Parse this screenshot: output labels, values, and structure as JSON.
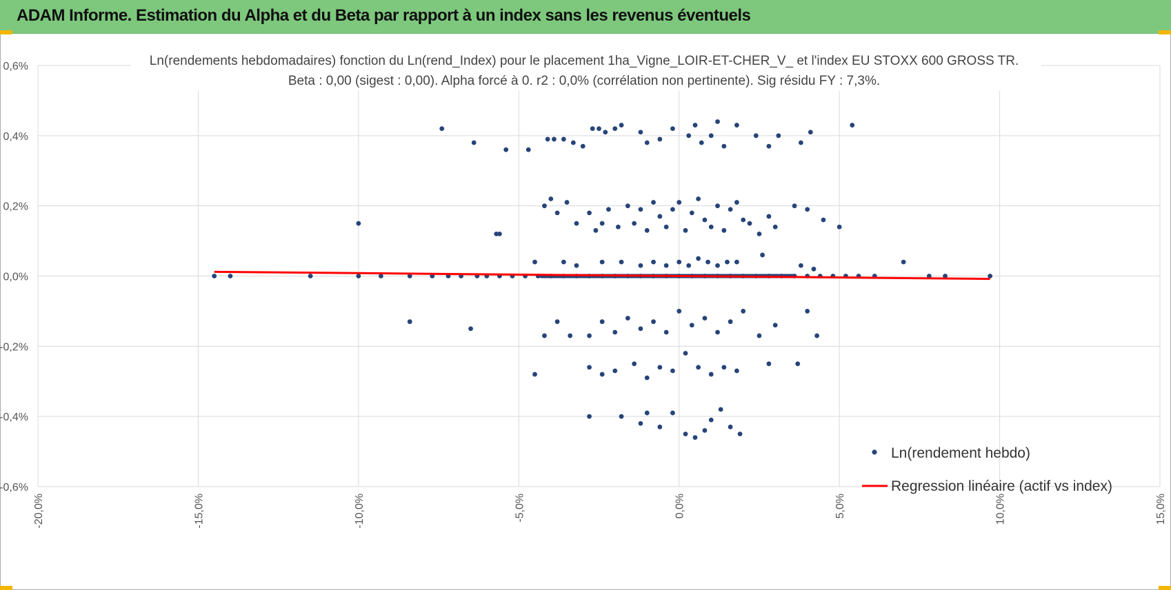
{
  "header": {
    "title": "ADAM Informe. Estimation du Alpha et du Beta par rapport à un index sans les revenus éventuels"
  },
  "colors": {
    "header_bg": "#7dc87d",
    "corner_accent": "#f2b705",
    "points": "#264478",
    "regression": "#ff0000",
    "grid": "#d9d9d9"
  },
  "chart_data": {
    "type": "scatter",
    "title": "Ln(rendements hebdomadaires) fonction du Ln(rend_Index) pour le placement 1ha_Vigne_LOIR-ET-CHER_V_ et l'index EU STOXX 600 GROSS TR.",
    "subtitle": "Beta : 0,00 (sigest : 0,00). Alpha forcé à 0. r2 : 0,0% (corrélation non pertinente). Sig résidu FY : 7,3%.",
    "xlabel": "",
    "ylabel": "",
    "xlim": [
      -20,
      15
    ],
    "ylim": [
      -0.6,
      0.6
    ],
    "x_ticks": [
      "-20,0%",
      "-15,0%",
      "-10,0%",
      "-5,0%",
      "0,0%",
      "5,0%",
      "10,0%",
      "15,0%"
    ],
    "y_ticks": [
      "0,6%",
      "0,4%",
      "0,2%",
      "0,0%",
      "-0,2%",
      "-0,4%",
      "-0,6%"
    ],
    "grid": true,
    "legend_position": "bottom-right",
    "series": [
      {
        "name": "Ln(rendement hebdo)",
        "kind": "points",
        "color": "#264478",
        "x": [
          -7.4,
          -6.4,
          -5.4,
          -4.7,
          -4.1,
          -3.9,
          -3.6,
          -3.3,
          -3.0,
          -2.7,
          -2.5,
          -2.3,
          -2.0,
          -1.8,
          -1.2,
          -1.0,
          -0.6,
          -0.2,
          0.3,
          0.5,
          0.7,
          1.0,
          1.2,
          1.4,
          1.8,
          2.4,
          2.8,
          3.1,
          3.8,
          4.1,
          5.4,
          -10.0,
          -5.7,
          -5.6,
          -4.2,
          -4.0,
          -3.8,
          -3.5,
          -3.2,
          -2.8,
          -2.6,
          -2.4,
          -2.2,
          -1.9,
          -1.6,
          -1.4,
          -1.2,
          -1.0,
          -0.8,
          -0.6,
          -0.4,
          -0.2,
          0.0,
          0.2,
          0.4,
          0.6,
          0.8,
          1.0,
          1.2,
          1.4,
          1.6,
          1.8,
          2.0,
          2.2,
          2.5,
          2.8,
          3.0,
          3.6,
          4.0,
          4.5,
          5.0,
          -4.5,
          -3.6,
          -3.2,
          -2.4,
          -1.8,
          -1.2,
          -0.8,
          -0.4,
          0.0,
          0.3,
          0.6,
          0.9,
          1.2,
          1.5,
          1.8,
          2.6,
          3.8,
          4.2,
          -14.5,
          -14.0,
          -11.5,
          -10.0,
          -9.3,
          -8.4,
          -7.7,
          -7.2,
          -6.8,
          -6.3,
          -6.0,
          -5.6,
          -5.2,
          -4.8,
          -4.4,
          -4.0,
          -3.6,
          -3.2,
          -2.8,
          -2.4,
          -2.0,
          -1.6,
          -1.2,
          -0.8,
          -0.4,
          0.0,
          0.4,
          0.8,
          1.2,
          1.6,
          2.0,
          2.4,
          2.8,
          3.2,
          3.6,
          4.0,
          4.4,
          4.8,
          5.2,
          5.6,
          6.1,
          7.0,
          7.8,
          8.3,
          9.7,
          -8.4,
          -6.5,
          -4.2,
          -3.8,
          -3.4,
          -2.8,
          -2.4,
          -2.0,
          -1.6,
          -1.2,
          -0.8,
          -0.4,
          0.0,
          0.4,
          0.8,
          1.2,
          1.6,
          2.0,
          2.5,
          3.0,
          4.0,
          4.3,
          -4.5,
          -2.8,
          -2.4,
          -2.0,
          -1.4,
          -1.0,
          -0.6,
          -0.2,
          0.2,
          0.6,
          1.0,
          1.4,
          1.8,
          2.8,
          3.7,
          -2.8,
          -1.8,
          -1.2,
          -1.0,
          -0.6,
          -0.2,
          0.2,
          0.5,
          0.8,
          1.0,
          1.3,
          1.6,
          1.9
        ],
        "y": [
          0.42,
          0.38,
          0.36,
          0.36,
          0.39,
          0.39,
          0.39,
          0.38,
          0.37,
          0.42,
          0.42,
          0.41,
          0.42,
          0.43,
          0.41,
          0.38,
          0.39,
          0.42,
          0.4,
          0.43,
          0.38,
          0.4,
          0.44,
          0.37,
          0.43,
          0.4,
          0.37,
          0.4,
          0.38,
          0.41,
          0.43,
          0.15,
          0.12,
          0.12,
          0.2,
          0.22,
          0.18,
          0.21,
          0.15,
          0.18,
          0.13,
          0.15,
          0.19,
          0.14,
          0.2,
          0.15,
          0.19,
          0.13,
          0.21,
          0.17,
          0.14,
          0.19,
          0.21,
          0.13,
          0.18,
          0.22,
          0.16,
          0.14,
          0.2,
          0.13,
          0.19,
          0.21,
          0.16,
          0.15,
          0.12,
          0.17,
          0.14,
          0.2,
          0.19,
          0.16,
          0.14,
          0.04,
          0.04,
          0.03,
          0.04,
          0.04,
          0.03,
          0.04,
          0.03,
          0.04,
          0.03,
          0.05,
          0.04,
          0.03,
          0.04,
          0.04,
          0.06,
          0.03,
          0.02,
          0.0,
          0.0,
          0.0,
          0.0,
          0.0,
          0.0,
          0.0,
          0.0,
          0.0,
          0.0,
          0.0,
          0.0,
          0.0,
          0.0,
          0.0,
          0.0,
          0.0,
          0.0,
          0.0,
          0.0,
          0.0,
          0.0,
          0.0,
          0.0,
          0.0,
          0.0,
          0.0,
          0.0,
          0.0,
          0.0,
          0.0,
          0.0,
          0.0,
          0.0,
          0.0,
          0.0,
          0.0,
          0.0,
          0.0,
          0.0,
          0.0,
          0.04,
          0.0,
          0.0,
          0.0,
          -0.13,
          -0.15,
          -0.17,
          -0.13,
          -0.17,
          -0.17,
          -0.13,
          -0.16,
          -0.12,
          -0.15,
          -0.13,
          -0.16,
          -0.1,
          -0.14,
          -0.12,
          -0.16,
          -0.13,
          -0.1,
          -0.17,
          -0.14,
          -0.1,
          -0.17,
          -0.28,
          -0.26,
          -0.28,
          -0.27,
          -0.25,
          -0.29,
          -0.26,
          -0.27,
          -0.22,
          -0.26,
          -0.28,
          -0.26,
          -0.27,
          -0.25,
          -0.25,
          -0.4,
          -0.4,
          -0.42,
          -0.39,
          -0.43,
          -0.39,
          -0.45,
          -0.46,
          -0.44,
          -0.41,
          -0.38,
          -0.43,
          -0.45
        ]
      },
      {
        "name": "Regression linéaire (actif vs index)",
        "kind": "line",
        "color": "#ff0000",
        "x": [
          -14.5,
          9.7
        ],
        "y": [
          0.012,
          -0.008
        ]
      }
    ]
  }
}
